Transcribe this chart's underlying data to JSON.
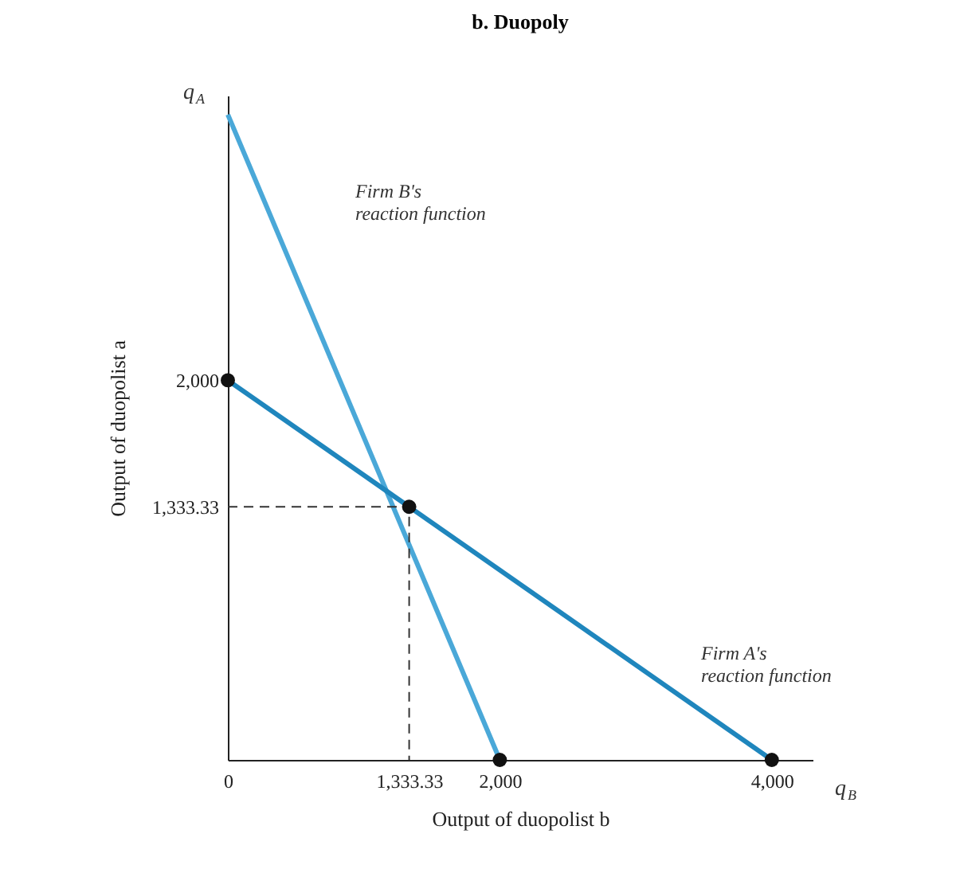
{
  "chart_data": {
    "type": "line",
    "title": "b. Duopoly",
    "xlabel": "Output of duopolist b",
    "ylabel": "Output of duopolist a",
    "series": [
      {
        "color": "#4aa8d8",
        "x": [
          0,
          2000
        ],
        "values": [
          3400,
          0
        ]
      },
      {
        "color": "#1f86bd",
        "x": [
          0,
          4000
        ],
        "values": [
          2000,
          0
        ]
      },
      {
        "color": "#333333",
        "line_style": "dashed",
        "x": [
          0,
          1333.33,
          1333.33
        ],
        "values": [
          1333.33,
          1333.33,
          0
        ]
      },
      {
        "type": "scatter",
        "color": "#111111",
        "marker": "circle",
        "x": [
          0,
          1333.33,
          2000,
          4000
        ],
        "values": [
          2000,
          1333.33,
          0,
          0
        ]
      }
    ],
    "xlim": [
      0,
      4300
    ],
    "ylim": [
      0,
      3500
    ],
    "xticks": [
      0,
      {
        "value": 1333.33,
        "label": "1,333.33"
      },
      {
        "value": 2000,
        "label": "2,000"
      },
      {
        "value": 4000,
        "label": "4,000"
      }
    ],
    "yticks": [
      {
        "value": 1333.33,
        "label": "1,333.33"
      },
      {
        "value": 2000,
        "label": "2,000"
      }
    ],
    "grid": false,
    "annotations": [
      "q$_{A}$",
      "q$_{B}$",
      "Firm B's\nreaction function",
      "Firm A's\nreaction function"
    ]
  }
}
